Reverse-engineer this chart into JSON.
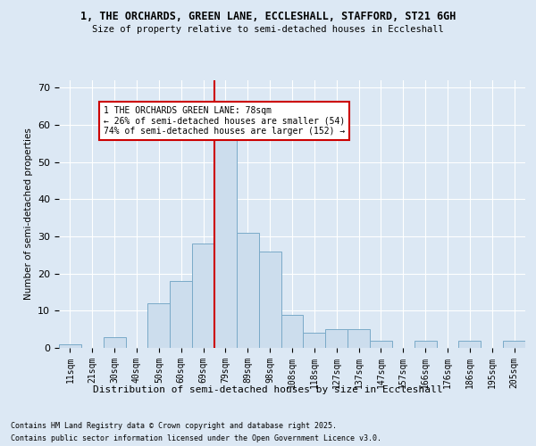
{
  "title1": "1, THE ORCHARDS, GREEN LANE, ECCLESHALL, STAFFORD, ST21 6GH",
  "title2": "Size of property relative to semi-detached houses in Eccleshall",
  "xlabel": "Distribution of semi-detached houses by size in Eccleshall",
  "ylabel": "Number of semi-detached properties",
  "footnote1": "Contains HM Land Registry data © Crown copyright and database right 2025.",
  "footnote2": "Contains public sector information licensed under the Open Government Licence v3.0.",
  "bar_labels": [
    "11sqm",
    "21sqm",
    "30sqm",
    "40sqm",
    "50sqm",
    "60sqm",
    "69sqm",
    "79sqm",
    "89sqm",
    "98sqm",
    "108sqm",
    "118sqm",
    "127sqm",
    "137sqm",
    "147sqm",
    "157sqm",
    "166sqm",
    "176sqm",
    "186sqm",
    "195sqm",
    "205sqm"
  ],
  "bar_values": [
    1,
    0,
    3,
    0,
    12,
    18,
    28,
    57,
    31,
    26,
    9,
    4,
    5,
    5,
    2,
    0,
    2,
    0,
    2,
    0,
    2
  ],
  "bar_color": "#ccdded",
  "bar_edge_color": "#7aaac8",
  "property_line_index": 7,
  "annotation_text": "1 THE ORCHARDS GREEN LANE: 78sqm\n← 26% of semi-detached houses are smaller (54)\n74% of semi-detached houses are larger (152) →",
  "annotation_box_color": "#ffffff",
  "annotation_box_edge": "#cc0000",
  "line_color": "#cc0000",
  "ylim": [
    0,
    72
  ],
  "yticks": [
    0,
    10,
    20,
    30,
    40,
    50,
    60,
    70
  ],
  "bg_color": "#dce8f4",
  "plot_bg_color": "#dce8f4",
  "grid_color": "#ffffff"
}
